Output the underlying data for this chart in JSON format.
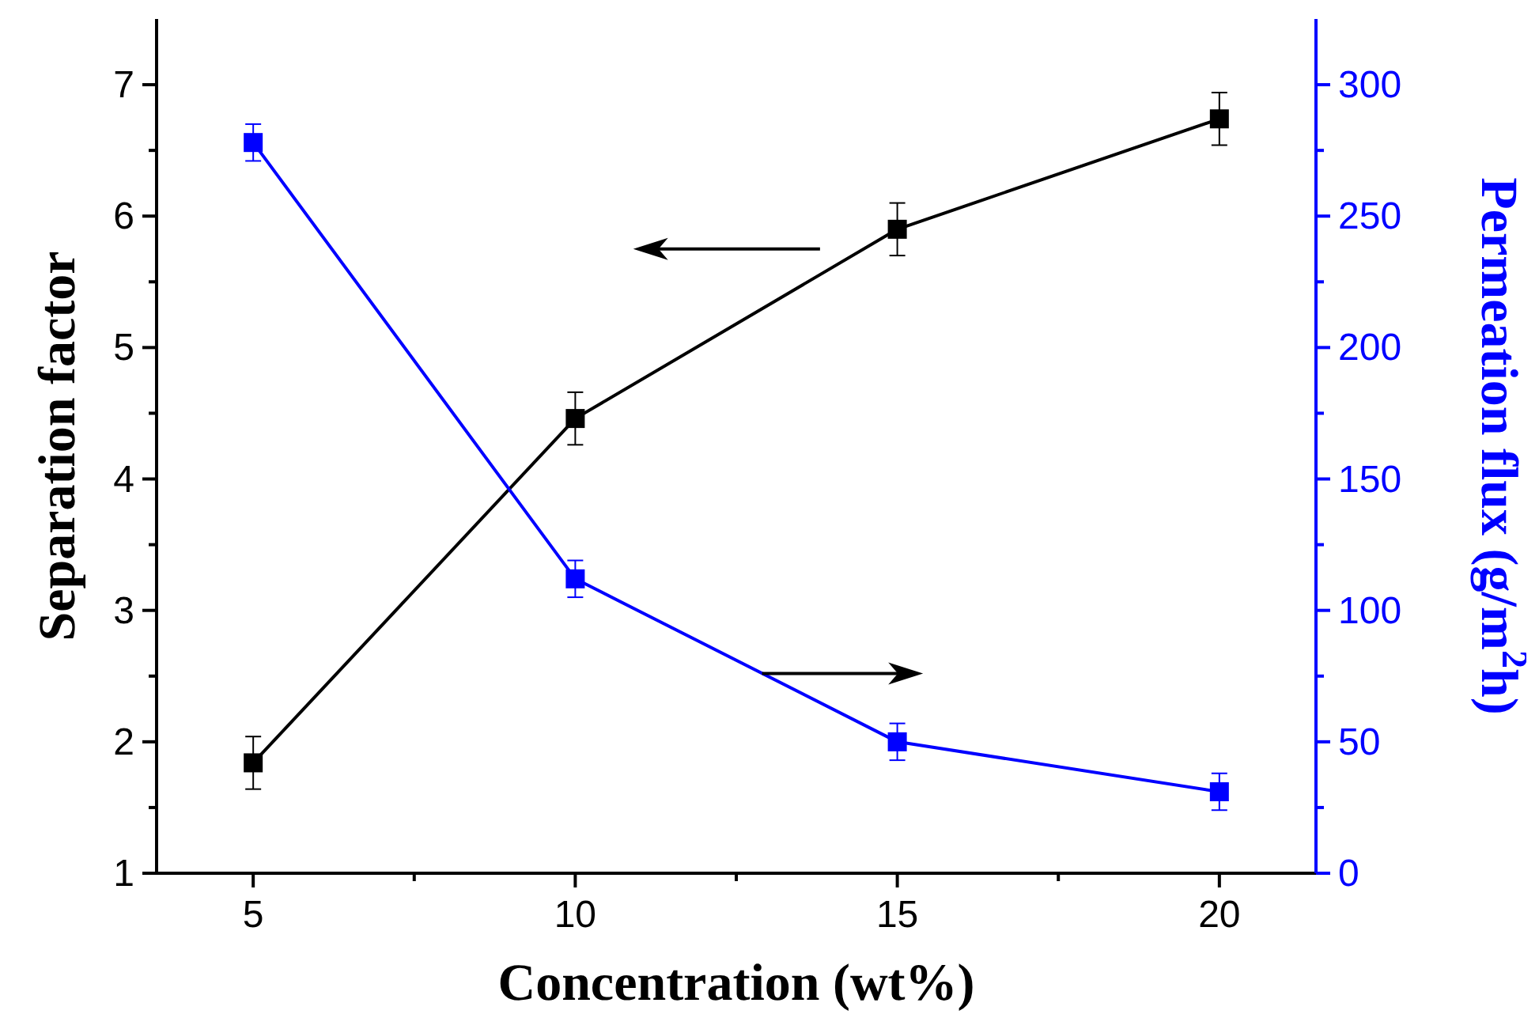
{
  "chart_data": {
    "type": "line",
    "xlabel": "Concentration (wt%)",
    "ylabel": "Separation factor",
    "y2label": "Permeation flux (g/m$^{2}$h)",
    "x": [
      5,
      10,
      15,
      20
    ],
    "xlim": [
      3.5,
      21.5
    ],
    "xticks": [
      5,
      {
        "value": 7.5,
        "label": null
      },
      10,
      {
        "value": 12.5,
        "label": null
      },
      15,
      {
        "value": 17.5,
        "label": null
      },
      20
    ],
    "ylim": [
      1,
      7.5
    ],
    "yticks": [
      1,
      {
        "value": 1.5,
        "label": null
      },
      2,
      {
        "value": 2.5,
        "label": null
      },
      3,
      {
        "value": 3.5,
        "label": null
      },
      4,
      {
        "value": 4.5,
        "label": null
      },
      5,
      {
        "value": 5.5,
        "label": null
      },
      6,
      {
        "value": 6.5,
        "label": null
      },
      7
    ],
    "y2lim": [
      0,
      325
    ],
    "y2ticks": [
      0,
      {
        "value": 25,
        "label": null
      },
      50,
      {
        "value": 75,
        "label": null
      },
      100,
      {
        "value": 125,
        "label": null
      },
      150,
      {
        "value": 175,
        "label": null
      },
      200,
      {
        "value": 225,
        "label": null
      },
      250,
      {
        "value": 275,
        "label": null
      },
      300
    ],
    "series": [
      {
        "color": "#000000",
        "values": [
          1.84,
          4.46,
          5.9,
          6.74
        ],
        "errors": [
          0.2,
          0.2,
          0.2,
          0.2
        ],
        "axis": "y"
      },
      {
        "color": "#0000ff",
        "values": [
          278,
          112,
          50,
          31
        ],
        "errors": [
          7,
          7,
          7,
          7
        ],
        "axis": "y2"
      }
    ],
    "marker": "square",
    "line_style": "solid",
    "grid": false
  }
}
